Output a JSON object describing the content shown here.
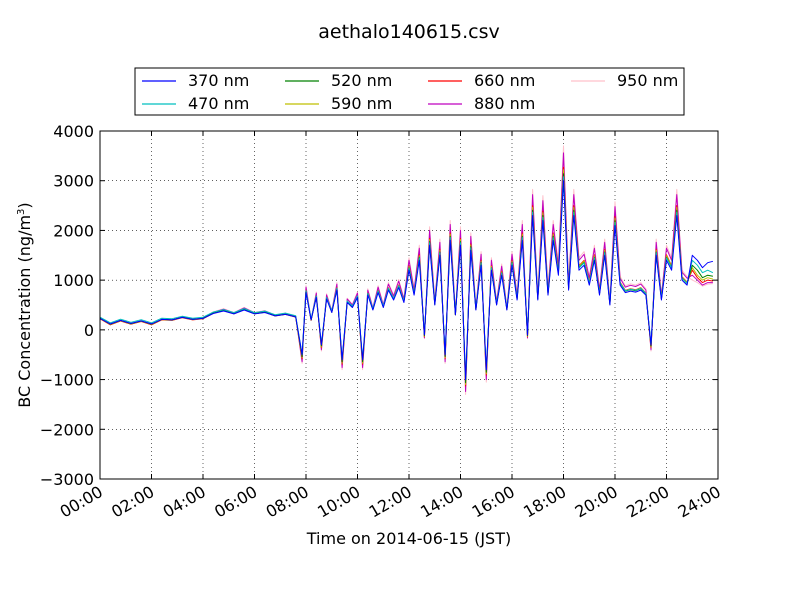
{
  "chart_data": {
    "type": "line",
    "title": "aethalo140615.csv",
    "xlabel": "Time on 2014-06-15 (JST)",
    "ylabel": "BC Concentration (ng/m",
    "ylabel_sup": "3",
    "ylabel_close": ")",
    "xlim": [
      0,
      24
    ],
    "ylim": [
      -3000,
      4000
    ],
    "xticks": [
      0,
      2,
      4,
      6,
      8,
      10,
      12,
      14,
      16,
      18,
      20,
      22,
      24
    ],
    "xtick_labels": [
      "00:00",
      "02:00",
      "04:00",
      "06:00",
      "08:00",
      "10:00",
      "12:00",
      "14:00",
      "16:00",
      "18:00",
      "20:00",
      "22:00",
      "24:00"
    ],
    "yticks": [
      -3000,
      -2000,
      -1000,
      0,
      1000,
      2000,
      3000,
      4000
    ],
    "ytick_labels": [
      "−3000",
      "−2000",
      "−1000",
      "0",
      "1000",
      "2000",
      "3000",
      "4000"
    ],
    "grid": true,
    "legend_position": "top-center",
    "base_x": [
      0,
      0.4,
      0.8,
      1.2,
      1.6,
      2.0,
      2.4,
      2.8,
      3.2,
      3.6,
      4.0,
      4.4,
      4.8,
      5.2,
      5.6,
      6.0,
      6.4,
      6.8,
      7.2,
      7.6,
      7.85,
      8.0,
      8.2,
      8.4,
      8.6,
      8.8,
      9.0,
      9.2,
      9.4,
      9.6,
      9.8,
      10.0,
      10.2,
      10.4,
      10.6,
      10.8,
      11.0,
      11.2,
      11.4,
      11.6,
      11.8,
      12.0,
      12.2,
      12.4,
      12.6,
      12.8,
      13.0,
      13.2,
      13.4,
      13.6,
      13.8,
      14.0,
      14.2,
      14.4,
      14.6,
      14.8,
      15.0,
      15.2,
      15.4,
      15.6,
      15.8,
      16.0,
      16.2,
      16.4,
      16.6,
      16.8,
      17.0,
      17.2,
      17.4,
      17.6,
      17.8,
      18.0,
      18.2,
      18.4,
      18.6,
      18.8,
      19.0,
      19.2,
      19.4,
      19.6,
      19.8,
      20.0,
      20.2,
      20.4,
      20.6,
      20.8,
      21.0,
      21.2,
      21.4,
      21.6,
      21.8,
      22.0,
      22.2,
      22.4,
      22.6,
      22.8,
      23.0,
      23.2,
      23.4,
      23.6,
      23.8
    ],
    "base_y": [
      230,
      120,
      190,
      130,
      180,
      120,
      210,
      200,
      250,
      210,
      230,
      330,
      380,
      320,
      400,
      320,
      350,
      280,
      310,
      260,
      -500,
      750,
      200,
      650,
      -300,
      620,
      350,
      800,
      -600,
      550,
      450,
      650,
      -600,
      700,
      400,
      750,
      450,
      800,
      600,
      850,
      550,
      1200,
      700,
      1400,
      -100,
      1700,
      500,
      1500,
      -500,
      1800,
      300,
      1700,
      -1000,
      1600,
      400,
      1300,
      -800,
      1200,
      500,
      1100,
      400,
      1300,
      600,
      1800,
      -100,
      2300,
      600,
      2200,
      700,
      1800,
      1100,
      3000,
      800,
      2300,
      1200,
      1300,
      900,
      1400,
      700,
      1500,
      500,
      2100,
      900,
      750,
      780,
      760,
      800,
      700,
      -300,
      1500,
      600,
      1400,
      1200,
      2300,
      1000,
      900,
      1100,
      1200,
      1000
    ],
    "series": [
      {
        "name": "370 nm",
        "color": "#0000ff",
        "scale": 1.0,
        "offset": 0,
        "tail": [
          1500,
          1400,
          1250,
          1350,
          1380
        ]
      },
      {
        "name": "470 nm",
        "color": "#00bfbf",
        "scale": 1.02,
        "offset": 20,
        "tail": [
          1400,
          1300,
          1150,
          1200,
          1150
        ]
      },
      {
        "name": "520 nm",
        "color": "#008000",
        "scale": 1.05,
        "offset": -10,
        "tail": [
          1300,
          1200,
          1050,
          1100,
          1080
        ]
      },
      {
        "name": "590 nm",
        "color": "#bfbf00",
        "scale": 1.08,
        "offset": -20,
        "tail": [
          1250,
          1100,
          1000,
          1050,
          1020
        ]
      },
      {
        "name": "660 nm",
        "color": "#ff0000",
        "scale": 1.1,
        "offset": -30,
        "tail": [
          1200,
          1050,
          950,
          1000,
          980
        ]
      },
      {
        "name": "880 nm",
        "color": "#bf00bf",
        "scale": 1.2,
        "offset": -40,
        "tail": [
          1100,
          1000,
          900,
          950,
          950
        ]
      },
      {
        "name": "950 nm",
        "color": "#ffc0cb",
        "scale": 1.25,
        "offset": -50,
        "tail": [
          1000,
          950,
          880,
          920,
          930
        ]
      }
    ]
  }
}
